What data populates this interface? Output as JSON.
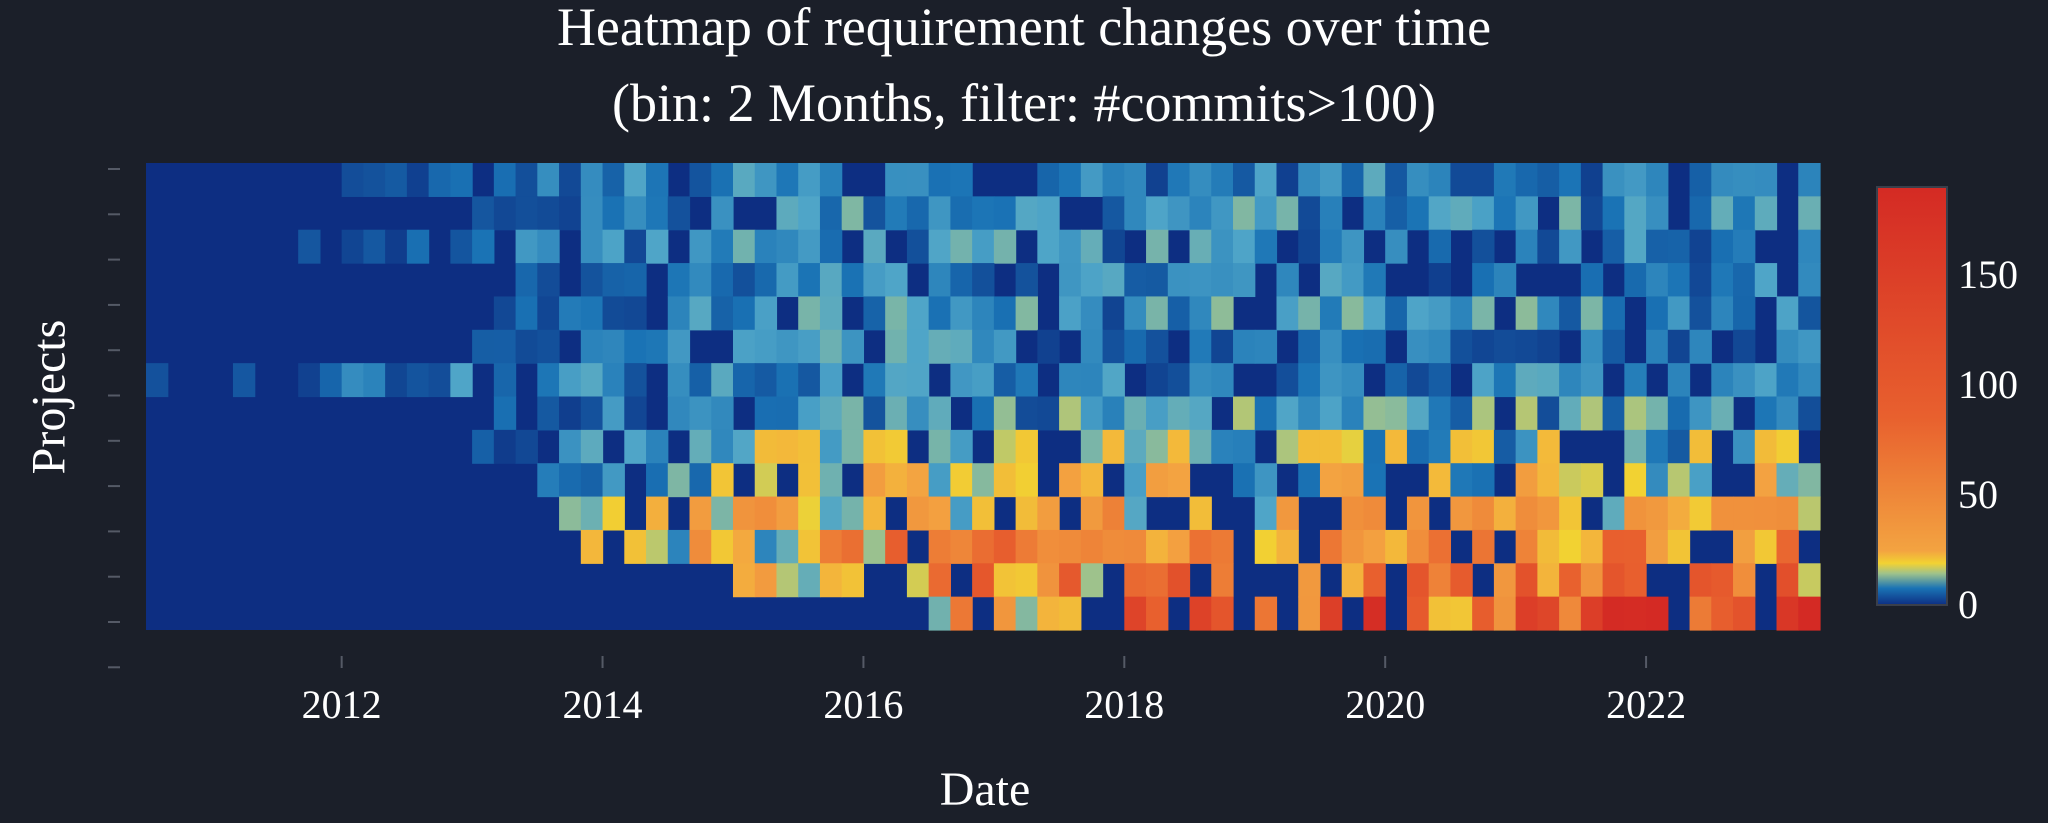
{
  "chart_data": {
    "type": "heatmap",
    "title": "Heatmap of requirement changes over time",
    "subtitle": "(bin: 2 Months, filter: #commits>100)",
    "xlabel": "Date",
    "ylabel": "Projects",
    "x_bin": "2 Months",
    "x_start": "2010-07",
    "x_end": "2023-05",
    "x_ticks": [
      "2012",
      "2014",
      "2016",
      "2018",
      "2020",
      "2022"
    ],
    "y_ticks": [
      "",
      "",
      "",
      "",
      "",
      "",
      "",
      "",
      "",
      "",
      "",
      ""
    ],
    "colorbar": {
      "min": 0,
      "max": 190,
      "ticks": [
        0,
        50,
        100,
        150
      ]
    },
    "colormap": [
      "#0d2e82",
      "#1a73b5",
      "#4fa5c8",
      "#9ec28c",
      "#f2d232",
      "#f3a341",
      "#e8602e",
      "#d42a24"
    ],
    "approximate_projects": [
      {
        "project": 1,
        "active_from": "2012-01",
        "mean_changes": 8
      },
      {
        "project": 2,
        "active_from": "2013-01",
        "mean_changes": 10
      },
      {
        "project": 3,
        "active_from": "2011-09",
        "mean_changes": 9
      },
      {
        "project": 4,
        "active_from": "2013-01",
        "mean_changes": 8
      },
      {
        "project": 5,
        "active_from": "2013-01",
        "mean_changes": 10
      },
      {
        "project": 6,
        "active_from": "2013-01",
        "mean_changes": 9
      },
      {
        "project": 7,
        "active_from": "2010-07",
        "mean_changes": 8
      },
      {
        "project": 8,
        "active_from": "2013-03",
        "mean_changes": 12
      },
      {
        "project": 9,
        "active_from": "2013-01",
        "mean_changes": 18
      },
      {
        "project": 10,
        "active_from": "2013-07",
        "mean_changes": 25
      },
      {
        "project": 11,
        "active_from": "2013-07",
        "mean_changes": 35
      },
      {
        "project": 12,
        "active_from": "2013-09",
        "mean_changes": 50
      },
      {
        "project": 13,
        "active_from": "2015-01",
        "mean_changes": 70
      },
      {
        "project": 14,
        "active_from": "2016-07",
        "mean_changes": 110
      }
    ]
  }
}
